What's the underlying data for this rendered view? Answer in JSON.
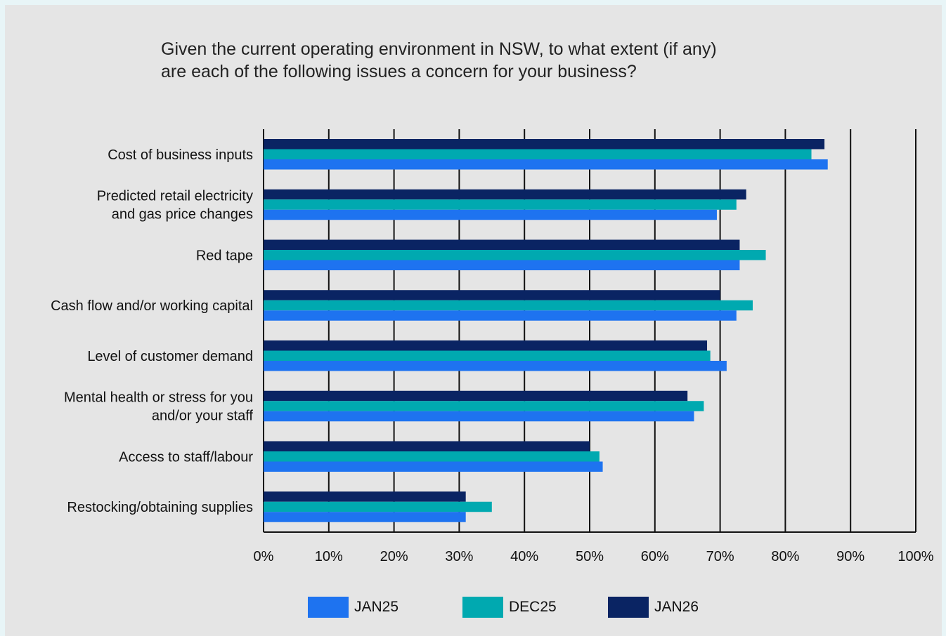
{
  "chart_data": {
    "type": "bar",
    "orientation": "horizontal",
    "title": "Given the current operating environment in NSW, to what extent (if any) are each of the following issues a concern for your business?",
    "title_lines": [
      "Given the current operating environment in NSW, to what extent (if any)",
      "are each of the following issues a concern for your business?"
    ],
    "categories": [
      [
        "Cost of business inputs"
      ],
      [
        "Predicted retail electricity",
        "and gas price changes"
      ],
      [
        "Red tape"
      ],
      [
        "Cash flow and/or working capital"
      ],
      [
        "Level of customer demand"
      ],
      [
        "Mental health or stress for you",
        "and/or your staff"
      ],
      [
        "Access to staff/labour"
      ],
      [
        "Restocking/obtaining supplies"
      ]
    ],
    "series": [
      {
        "name": "JAN26",
        "color": "#0a2463",
        "values": [
          86,
          74,
          73,
          70,
          68,
          65,
          50,
          31
        ]
      },
      {
        "name": "DEC25",
        "color": "#00a9b0",
        "values": [
          84,
          72.5,
          77,
          75,
          68.5,
          67.5,
          51.5,
          35
        ]
      },
      {
        "name": "JAN25",
        "color": "#1e73f0",
        "values": [
          86.5,
          69.5,
          73,
          72.5,
          71,
          66,
          52,
          31
        ]
      }
    ],
    "legend_order": [
      "JAN25",
      "DEC25",
      "JAN26"
    ],
    "x_ticks": [
      "0%",
      "10%",
      "20%",
      "30%",
      "40%",
      "50%",
      "60%",
      "70%",
      "80%",
      "90%",
      "100%"
    ],
    "xlim": [
      0,
      100
    ],
    "grid": true,
    "legend_position": "bottom"
  }
}
